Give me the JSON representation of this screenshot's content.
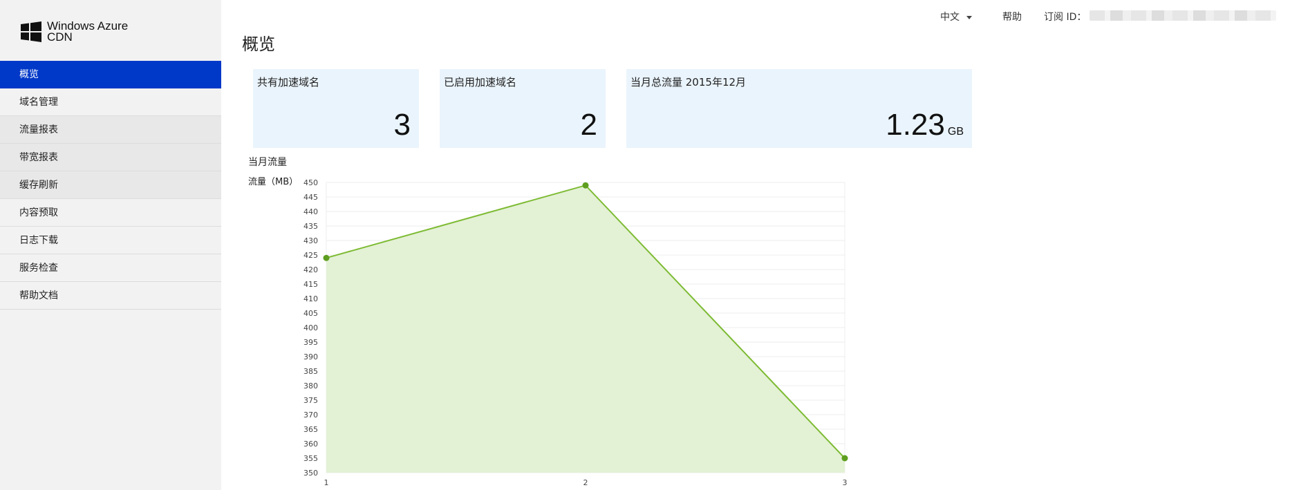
{
  "app": {
    "logo_line1": "Windows Azure",
    "logo_line2": "CDN",
    "brand_color": "#0038c8"
  },
  "sidebar": {
    "items": [
      {
        "label": "概览",
        "active": true
      },
      {
        "label": "域名管理"
      },
      {
        "label": "流量报表"
      },
      {
        "label": "带宽报表"
      },
      {
        "label": "缓存刷新"
      },
      {
        "label": "内容预取"
      },
      {
        "label": "日志下载"
      },
      {
        "label": "服务检查"
      },
      {
        "label": "帮助文档"
      }
    ]
  },
  "topbar": {
    "language": "中文",
    "help": "帮助",
    "subscription_label": "订阅 ID："
  },
  "page": {
    "title": "概览"
  },
  "cards": [
    {
      "label": "共有加速域名",
      "value": "3",
      "unit": ""
    },
    {
      "label": "已启用加速域名",
      "value": "2",
      "unit": ""
    },
    {
      "label": "当月总流量 2015年12月",
      "value": "1.23",
      "unit": "GB"
    }
  ],
  "chart_data": {
    "type": "area",
    "title": "当月流量",
    "ylabel": "流量（MB）",
    "xlabel": "",
    "x": [
      1,
      2,
      3
    ],
    "values": [
      424,
      449,
      355
    ],
    "ylim": [
      350,
      450
    ],
    "ytick_step": 5,
    "grid": true,
    "line_color": "#7dbb33",
    "fill_color": "#e3f1d5",
    "point_color": "#5e9e1f"
  }
}
